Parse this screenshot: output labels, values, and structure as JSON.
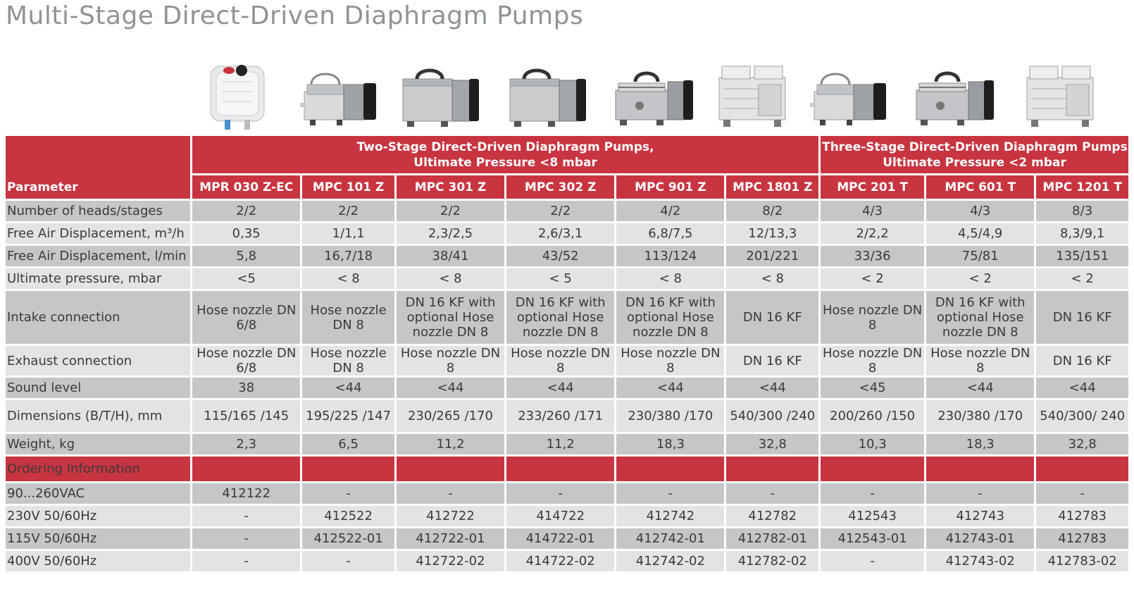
{
  "title": "Multi-Stage Direct-Driven Diaphragm Pumps",
  "table": {
    "parameter_label": "Parameter",
    "groups": [
      {
        "line1": "Two-Stage Direct-Driven Diaphragm Pumps,",
        "line2": "Ultimate Pressure <8 mbar"
      },
      {
        "line1": "Three-Stage Direct-Driven Diaphragm Pumps,",
        "line2": "Ultimate Pressure <2 mbar"
      }
    ],
    "models": [
      "MPR 030 Z-EC",
      "MPC 101 Z",
      "MPC 301 Z",
      "MPC 302 Z",
      "MPC 901 Z",
      "MPC 1801 Z",
      "MPC 201 T",
      "MPC 601 T",
      "MPC 1201 T"
    ],
    "rows": [
      {
        "label": "Number of heads/stages",
        "values": [
          "2/2",
          "2/2",
          "2/2",
          "2/2",
          "4/2",
          "8/2",
          "4/3",
          "4/3",
          "8/3"
        ]
      },
      {
        "label": "Free Air Displacement, m³/h",
        "values": [
          "0,35",
          "1/1,1",
          "2,3/2,5",
          "2,6/3,1",
          "6,8/7,5",
          "12/13,3",
          "2/2,2",
          "4,5/4,9",
          "8,3/9,1"
        ]
      },
      {
        "label": "Free Air Displacement, l/min",
        "values": [
          "5,8",
          "16,7/18",
          "38/41",
          "43/52",
          "113/124",
          "201/221",
          "33/36",
          "75/81",
          "135/151"
        ]
      },
      {
        "label": "Ultimate pressure, mbar",
        "values": [
          "<5",
          "< 8",
          "< 8",
          "< 5",
          "< 8",
          "< 8",
          "< 2",
          "< 2",
          "< 2"
        ]
      },
      {
        "label": "Intake connection",
        "values": [
          "Hose nozzle DN 6/8",
          "Hose nozzle DN 8",
          "DN 16 KF with optional Hose nozzle DN 8",
          "DN 16 KF with optional Hose nozzle DN 8",
          "DN 16 KF with optional Hose nozzle DN 8",
          "DN 16 KF",
          "Hose nozzle DN 8",
          "DN 16 KF with optional Hose nozzle DN 8",
          "DN 16 KF"
        ]
      },
      {
        "label": "Exhaust connection",
        "values": [
          "Hose nozzle DN 6/8",
          "Hose nozzle DN 8",
          "Hose nozzle DN 8",
          "Hose nozzle DN 8",
          "Hose nozzle DN 8",
          "DN 16 KF",
          "Hose nozzle DN 8",
          "Hose nozzle DN 8",
          "DN 16 KF"
        ]
      },
      {
        "label": "Sound level",
        "values": [
          "38",
          "<44",
          "<44",
          "<44",
          "<44",
          "<44",
          "<45",
          "<44",
          "<44"
        ]
      },
      {
        "label": "Dimensions (B/T/H), mm",
        "values": [
          "115/165 /145",
          "195/225 /147",
          "230/265 /170",
          "233/260 /171",
          "230/380 /170",
          "540/300 /240",
          "200/260 /150",
          "230/380 /170",
          "540/300/ 240"
        ]
      },
      {
        "label": "Weight, kg",
        "values": [
          "2,3",
          "6,5",
          "11,2",
          "11,2",
          "18,3",
          "32,8",
          "10,3",
          "18,3",
          "32,8"
        ]
      }
    ],
    "ordering_label": "Ordering Information",
    "ordering_rows": [
      {
        "label": "90...260VAC",
        "values": [
          "412122",
          "-",
          "-",
          "-",
          "-",
          "-",
          "-",
          "-",
          "-"
        ]
      },
      {
        "label": "230V 50/60Hz",
        "values": [
          "-",
          "412522",
          "412722",
          "414722",
          "412742",
          "412782",
          "412543",
          "412743",
          "412783"
        ]
      },
      {
        "label": "115V 50/60Hz",
        "values": [
          "-",
          "412522-01",
          "412722-01",
          "414722-01",
          "412742-01",
          "412782-01",
          "412543-01",
          "412743-01",
          "412783"
        ]
      },
      {
        "label": "400V 50/60Hz",
        "values": [
          "-",
          "-",
          "412722-02",
          "414722-02",
          "412742-02",
          "412782-02",
          "-",
          "412743-02",
          "412783-02"
        ]
      }
    ]
  },
  "images": [
    {
      "name": "MPR 030 Z-EC",
      "kind": "white-housing"
    },
    {
      "name": "MPC 101 Z",
      "kind": "small-gray"
    },
    {
      "name": "MPC 301 Z",
      "kind": "block-gray"
    },
    {
      "name": "MPC 302 Z",
      "kind": "block-gray"
    },
    {
      "name": "MPC 901 Z",
      "kind": "quad-gray"
    },
    {
      "name": "MPC 1801 Z",
      "kind": "tall-white"
    },
    {
      "name": "MPC 201 T",
      "kind": "small-gray"
    },
    {
      "name": "MPC 601 T",
      "kind": "quad-gray"
    },
    {
      "name": "MPC 1201 T",
      "kind": "tall-white"
    }
  ],
  "colors": {
    "accent": "#c83440",
    "row_dark": "#c4c6c8",
    "row_light": "#e2e3e4",
    "title": "#8f9397"
  }
}
